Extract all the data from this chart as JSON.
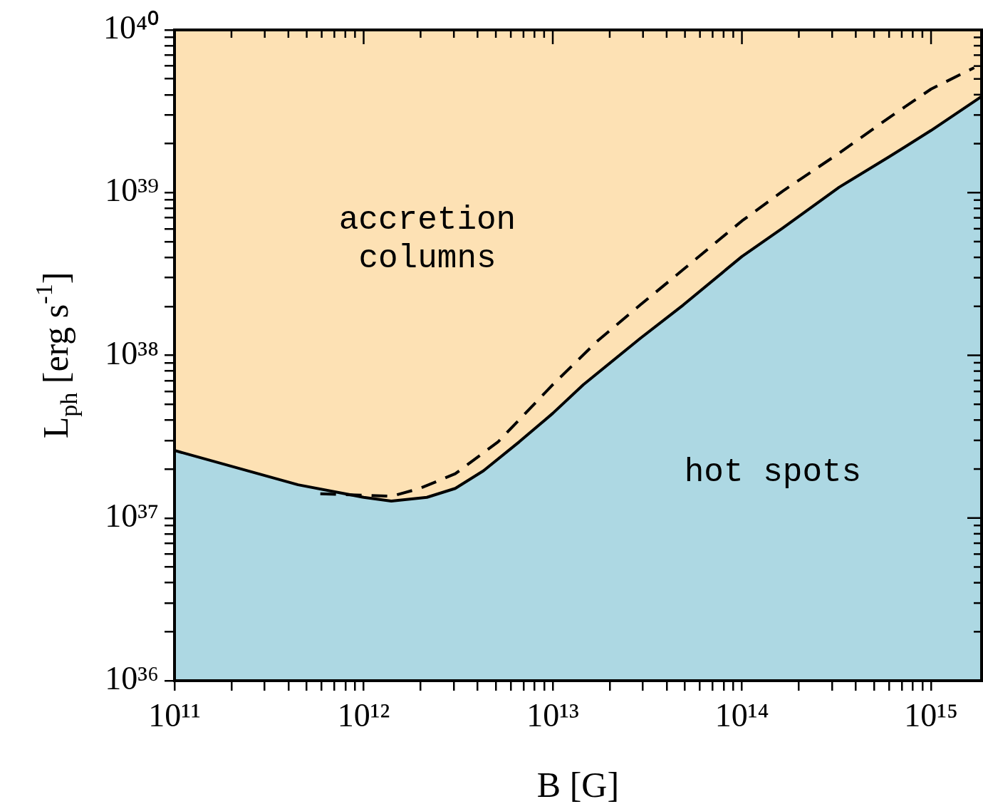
{
  "chart_data": {
    "type": "line",
    "xlabel": "B [G]",
    "ylabel": "L$_{ph}$ [erg s$^{-1}$]",
    "log": "xy",
    "grid": false,
    "legend": false,
    "marker": "none",
    "xlim": [
      100000000000.0,
      1850000000000000.0
    ],
    "ylim": [
      1e+36,
      1e+40
    ],
    "xticks": [
      {
        "value": 100000000000.0,
        "label": "10¹¹"
      },
      {
        "value": 200000000000.0,
        "label": null
      },
      {
        "value": 300000000000.0,
        "label": null
      },
      {
        "value": 400000000000.0,
        "label": null
      },
      {
        "value": 500000000000.0,
        "label": null
      },
      {
        "value": 600000000000.0,
        "label": null
      },
      {
        "value": 700000000000.0,
        "label": null
      },
      {
        "value": 800000000000.0,
        "label": null
      },
      {
        "value": 900000000000.0,
        "label": null
      },
      {
        "value": 1000000000000.0,
        "label": "10¹²"
      },
      {
        "value": 2000000000000.0,
        "label": null
      },
      {
        "value": 3000000000000.0,
        "label": null
      },
      {
        "value": 4000000000000.0,
        "label": null
      },
      {
        "value": 5000000000000.0,
        "label": null
      },
      {
        "value": 6000000000000.0,
        "label": null
      },
      {
        "value": 7000000000000.0,
        "label": null
      },
      {
        "value": 8000000000000.0,
        "label": null
      },
      {
        "value": 9000000000000.0,
        "label": null
      },
      {
        "value": 10000000000000.0,
        "label": "10¹³"
      },
      {
        "value": 20000000000000.0,
        "label": null
      },
      {
        "value": 30000000000000.0,
        "label": null
      },
      {
        "value": 40000000000000.0,
        "label": null
      },
      {
        "value": 50000000000000.0,
        "label": null
      },
      {
        "value": 60000000000000.0,
        "label": null
      },
      {
        "value": 70000000000000.0,
        "label": null
      },
      {
        "value": 80000000000000.0,
        "label": null
      },
      {
        "value": 90000000000000.0,
        "label": null
      },
      {
        "value": 100000000000000.0,
        "label": "10¹⁴"
      },
      {
        "value": 200000000000000.0,
        "label": null
      },
      {
        "value": 300000000000000.0,
        "label": null
      },
      {
        "value": 400000000000000.0,
        "label": null
      },
      {
        "value": 500000000000000.0,
        "label": null
      },
      {
        "value": 600000000000000.0,
        "label": null
      },
      {
        "value": 700000000000000.0,
        "label": null
      },
      {
        "value": 800000000000000.0,
        "label": null
      },
      {
        "value": 900000000000000.0,
        "label": null
      },
      {
        "value": 1000000000000000.0,
        "label": "10¹⁵"
      }
    ],
    "yticks": [
      {
        "value": 1e+36,
        "label": "10³⁶"
      },
      {
        "value": 2e+36,
        "label": null
      },
      {
        "value": 3e+36,
        "label": null
      },
      {
        "value": 4e+36,
        "label": null
      },
      {
        "value": 5e+36,
        "label": null
      },
      {
        "value": 6e+36,
        "label": null
      },
      {
        "value": 7e+36,
        "label": null
      },
      {
        "value": 8e+36,
        "label": null
      },
      {
        "value": 9e+36,
        "label": null
      },
      {
        "value": 1e+37,
        "label": "10³⁷"
      },
      {
        "value": 2e+37,
        "label": null
      },
      {
        "value": 3e+37,
        "label": null
      },
      {
        "value": 4e+37,
        "label": null
      },
      {
        "value": 5e+37,
        "label": null
      },
      {
        "value": 6e+37,
        "label": null
      },
      {
        "value": 7e+37,
        "label": null
      },
      {
        "value": 8e+37,
        "label": null
      },
      {
        "value": 9e+37,
        "label": null
      },
      {
        "value": 1e+38,
        "label": "10³⁸"
      },
      {
        "value": 2e+38,
        "label": null
      },
      {
        "value": 3e+38,
        "label": null
      },
      {
        "value": 4e+38,
        "label": null
      },
      {
        "value": 5e+38,
        "label": null
      },
      {
        "value": 6e+38,
        "label": null
      },
      {
        "value": 7e+38,
        "label": null
      },
      {
        "value": 8e+38,
        "label": null
      },
      {
        "value": 9e+38,
        "label": null
      },
      {
        "value": 1e+39,
        "label": "10³⁹"
      },
      {
        "value": 2e+39,
        "label": null
      },
      {
        "value": 3e+39,
        "label": null
      },
      {
        "value": 4e+39,
        "label": null
      },
      {
        "value": 5e+39,
        "label": null
      },
      {
        "value": 6e+39,
        "label": null
      },
      {
        "value": 7e+39,
        "label": null
      },
      {
        "value": 8e+39,
        "label": null
      },
      {
        "value": 9e+39,
        "label": null
      },
      {
        "value": 1e+40,
        "label": "10⁴⁰"
      }
    ],
    "bands": [
      {
        "axis": "y",
        "from": 1e+36,
        "to": 1e+40,
        "color": "#fde1b4"
      }
    ],
    "annotations": [
      "accretion columns",
      "hot spots"
    ],
    "series": [
      {
        "type": "line",
        "color": "#000000",
        "line_style": "dashed",
        "x": [
          590000000000.0,
          1000000000000.0,
          1400000000000.0,
          1980000000000.0,
          3050000000000.0,
          5140000000000.0,
          10000000000000.0,
          17300000000000.0,
          29000000000000.0,
          49000000000000.0,
          100000000000000.0,
          164000000000000.0,
          327000000000000.0,
          600000000000000.0,
          1000000000000000.0,
          1690000000000000.0
        ],
        "values": [
          1.41e+37,
          1.38e+37,
          1.36e+37,
          1.52e+37,
          1.87e+37,
          2.94e+37,
          6.6e+37,
          1.23e+38,
          2.04e+38,
          3.37e+38,
          6.7e+38,
          1.02e+39,
          1.75e+39,
          2.89e+39,
          4.33e+39,
          5.86e+39
        ]
      },
      {
        "type": "area",
        "color": "#add8e3",
        "line_style": "solid",
        "x": [
          100000000000.0,
          450000000000.0,
          1000000000000.0,
          1400000000000.0,
          2160000000000.0,
          3050000000000.0,
          4300000000000.0,
          6650000000000.0,
          10000000000000.0,
          14500000000000.0,
          29000000000000.0,
          49000000000000.0,
          100000000000000.0,
          164000000000000.0,
          327000000000000.0,
          600000000000000.0,
          1000000000000000.0,
          1850000000000000.0
        ],
        "values": [
          2.6e+37,
          1.6e+37,
          1.34e+37,
          1.27e+37,
          1.34e+37,
          1.52e+37,
          1.95e+37,
          2.94e+37,
          4.4e+37,
          6.6e+37,
          1.27e+38,
          2.04e+38,
          4.05e+38,
          6.05e+38,
          1.08e+39,
          1.66e+39,
          2.41e+39,
          3.9e+39
        ]
      }
    ]
  }
}
